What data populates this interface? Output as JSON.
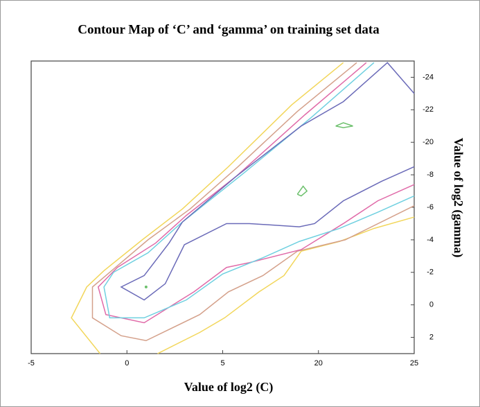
{
  "chart_data": {
    "type": "line",
    "title": "Contour Map of ‘C’ and ‘gamma’ on training set data",
    "x_label": "Value of log2 (C)",
    "y_label": "Value of log2 (gamma)",
    "xlim": [
      -5,
      15
    ],
    "ylim": [
      3,
      -15
    ],
    "xticks": [
      -5,
      0,
      5,
      {
        "value": 10,
        "label": "20"
      },
      {
        "value": 15,
        "label": "25"
      }
    ],
    "yticks": [
      {
        "value": -14,
        "label": "-24"
      },
      {
        "value": -12,
        "label": "-22"
      },
      {
        "value": -10,
        "label": "-20"
      },
      -8,
      -6,
      -4,
      -2,
      0,
      2
    ],
    "series": [
      {
        "color": "#f2d65a",
        "x": [
          11.3,
          8.6,
          5.3,
          2.9,
          0.8,
          -1.2,
          -2.1,
          -2.9,
          -1.4,
          null,
          1.6,
          3.8,
          5.1,
          6.9,
          8.2,
          9.1,
          11.1,
          12.9,
          15.0
        ],
        "y": [
          -14.9,
          -12.3,
          -8.5,
          -5.9,
          -4.0,
          -2.1,
          -1.1,
          0.8,
          3.0,
          null,
          3.0,
          1.7,
          0.8,
          -0.8,
          -1.8,
          -3.3,
          -3.9,
          -4.7,
          -5.4
        ]
      },
      {
        "color": "#d4a08a",
        "x": [
          12.0,
          8.9,
          5.8,
          3.3,
          1.1,
          -0.9,
          -1.8,
          -1.8,
          -0.3,
          1.0,
          3.8,
          5.3,
          7.1,
          8.9,
          11.4,
          15.0
        ],
        "y": [
          -14.9,
          -11.9,
          -8.5,
          -5.9,
          -4.0,
          -2.0,
          -1.1,
          0.8,
          1.9,
          2.2,
          0.6,
          -0.8,
          -1.8,
          -3.3,
          -4.0,
          -6.1
        ]
      },
      {
        "color": "#e06aa8",
        "x": [
          12.5,
          9.3,
          5.7,
          3.1,
          1.5,
          -0.5,
          -1.5,
          -1.1,
          0.9,
          3.5,
          5.2,
          6.4,
          9.1,
          11.3,
          13.1,
          15.0
        ],
        "y": [
          -14.9,
          -11.7,
          -7.9,
          -5.5,
          -3.8,
          -2.3,
          -1.1,
          0.6,
          1.1,
          -0.8,
          -2.3,
          -2.6,
          -3.4,
          -5.0,
          -6.4,
          -7.4
        ]
      },
      {
        "color": "#6fd0e0",
        "x": [
          12.9,
          9.6,
          6.2,
          2.8,
          1.1,
          -0.7,
          -1.2,
          -0.9,
          0.9,
          3.1,
          5.0,
          7.1,
          9.0,
          11.1,
          13.1,
          15.0
        ],
        "y": [
          -14.9,
          -11.5,
          -8.2,
          -5.0,
          -3.2,
          -2.0,
          -1.1,
          0.8,
          0.8,
          -0.3,
          -1.9,
          -2.9,
          -3.9,
          -4.7,
          -5.7,
          -6.7
        ]
      },
      {
        "color": "#6a6ab8",
        "x": [
          15.0,
          13.6,
          11.3,
          9.1,
          5.7,
          2.9,
          2.2,
          0.9,
          -0.3,
          0.9,
          2.0,
          3.0,
          5.2,
          6.4,
          9.0,
          9.8,
          11.3,
          13.3,
          15.0
        ],
        "y": [
          -13.0,
          -14.9,
          -12.5,
          -11.0,
          -7.9,
          -5.1,
          -3.8,
          -1.8,
          -1.1,
          -0.3,
          -1.3,
          -3.7,
          -5.0,
          -5.0,
          -4.8,
          -5.0,
          -6.4,
          -7.6,
          -8.5
        ]
      },
      {
        "color": "#6cc06c",
        "x": [
          10.9,
          11.3,
          11.8,
          11.3,
          10.9,
          null,
          8.9,
          9.2,
          9.4,
          9.1,
          8.9,
          null,
          1.0
        ],
        "y": [
          -11.0,
          -11.2,
          -11.0,
          -10.9,
          -11.0,
          null,
          -6.8,
          -7.3,
          -7.0,
          -6.7,
          -6.8,
          null,
          -1.1
        ]
      }
    ]
  }
}
